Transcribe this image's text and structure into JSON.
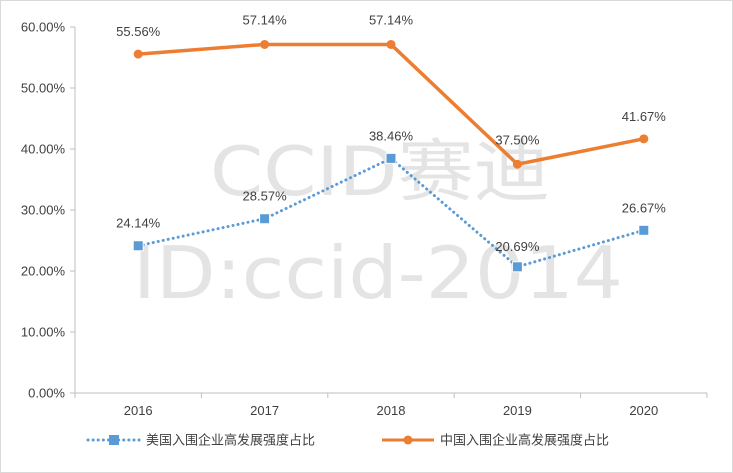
{
  "chart_data": {
    "type": "line",
    "x": [
      "2016",
      "2017",
      "2018",
      "2019",
      "2020"
    ],
    "ylim": [
      0,
      60
    ],
    "yticks": [
      "0.00%",
      "10.00%",
      "20.00%",
      "30.00%",
      "40.00%",
      "50.00%",
      "60.00%"
    ],
    "grid": false,
    "legend": "bottom",
    "series": [
      {
        "name": "美国入围企业高发展强度占比",
        "values": [
          24.14,
          28.57,
          38.46,
          20.69,
          26.67
        ],
        "labels": [
          "24.14%",
          "28.57%",
          "38.46%",
          "20.69%",
          "26.67%"
        ],
        "color": "#5b9bd5",
        "style": "dotted",
        "marker": "square"
      },
      {
        "name": "中国入围企业高发展强度占比",
        "values": [
          55.56,
          57.14,
          57.14,
          37.5,
          41.67
        ],
        "labels": [
          "55.56%",
          "57.14%",
          "57.14%",
          "37.50%",
          "41.67%"
        ],
        "color": "#ed7d31",
        "style": "solid",
        "marker": "circle"
      }
    ]
  },
  "watermark": {
    "line1": "CCID赛迪",
    "line2": "ID:ccid-2014"
  }
}
